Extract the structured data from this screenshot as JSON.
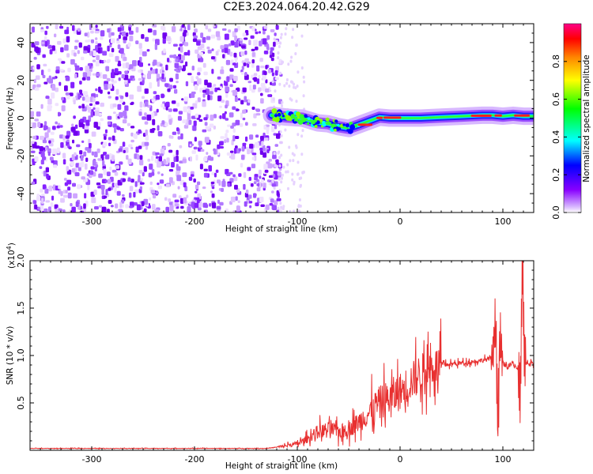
{
  "title": "C2E3.2024.064.20.42.G29",
  "chart_data": [
    {
      "type": "heatmap",
      "name": "spectrogram",
      "xlabel": "Height of straight line (km)",
      "ylabel": "Frequency (Hz)",
      "xlim": [
        -360,
        130
      ],
      "ylim": [
        -50,
        50
      ],
      "xticks": [
        -300,
        -200,
        -100,
        0,
        100
      ],
      "yticks": [
        -40,
        -20,
        0,
        20,
        40
      ],
      "noise_region_x": [
        -360,
        -125
      ],
      "signal_track": {
        "x": [
          -125,
          -110,
          -95,
          -80,
          -70,
          -60,
          -50,
          -40,
          -30,
          -20,
          -10,
          0,
          20,
          40,
          60,
          80,
          90,
          100,
          110,
          120,
          130
        ],
        "y": [
          1.5,
          0.5,
          0,
          -2.5,
          -3,
          -4.5,
          -5.5,
          -3.5,
          -1.5,
          0.5,
          0,
          0,
          0,
          0.5,
          1,
          1.5,
          1.5,
          1,
          1.5,
          1,
          1
        ]
      },
      "colorbar": {
        "label": "Normalized spectral amplitude",
        "range": [
          0.0,
          1.0
        ],
        "ticks": [
          "0.0",
          "0.2",
          "0.4",
          "0.6",
          "0.8"
        ],
        "colors": [
          "#ffffff",
          "#cc99ff",
          "#8800ff",
          "#0000ff",
          "#00ffff",
          "#00ff00",
          "#ffff00",
          "#ff8800",
          "#ff0000",
          "#ff0088"
        ]
      }
    },
    {
      "type": "line",
      "name": "snr",
      "xlabel": "Height of straight line (km)",
      "ylabel": "SNR (10 * v/v)",
      "scale_label": "(x10",
      "scale_exp": "4",
      "scale_close": ")",
      "xlim": [
        -360,
        130
      ],
      "ylim": [
        0,
        2.0
      ],
      "xticks": [
        -300,
        -200,
        -100,
        0,
        100
      ],
      "yticks": [
        "0.5",
        "1.0",
        "1.5",
        "2.0"
      ],
      "color": "#e83030",
      "x": [
        -360,
        -300,
        -200,
        -130,
        -115,
        -100,
        -90,
        -80,
        -70,
        -60,
        -50,
        -40,
        -30,
        -20,
        -10,
        0,
        10,
        20,
        30,
        40,
        60,
        80,
        90,
        93,
        95,
        97,
        100,
        105,
        110,
        115,
        117,
        119,
        121,
        125,
        130
      ],
      "y": [
        0.02,
        0.02,
        0.02,
        0.02,
        0.04,
        0.07,
        0.12,
        0.2,
        0.22,
        0.2,
        0.22,
        0.3,
        0.4,
        0.5,
        0.55,
        0.62,
        0.72,
        0.82,
        0.88,
        0.9,
        0.92,
        0.95,
        0.97,
        1.4,
        0.2,
        1.2,
        0.92,
        0.88,
        0.92,
        0.85,
        0.55,
        2.05,
        0.95,
        0.9,
        0.92
      ]
    }
  ]
}
